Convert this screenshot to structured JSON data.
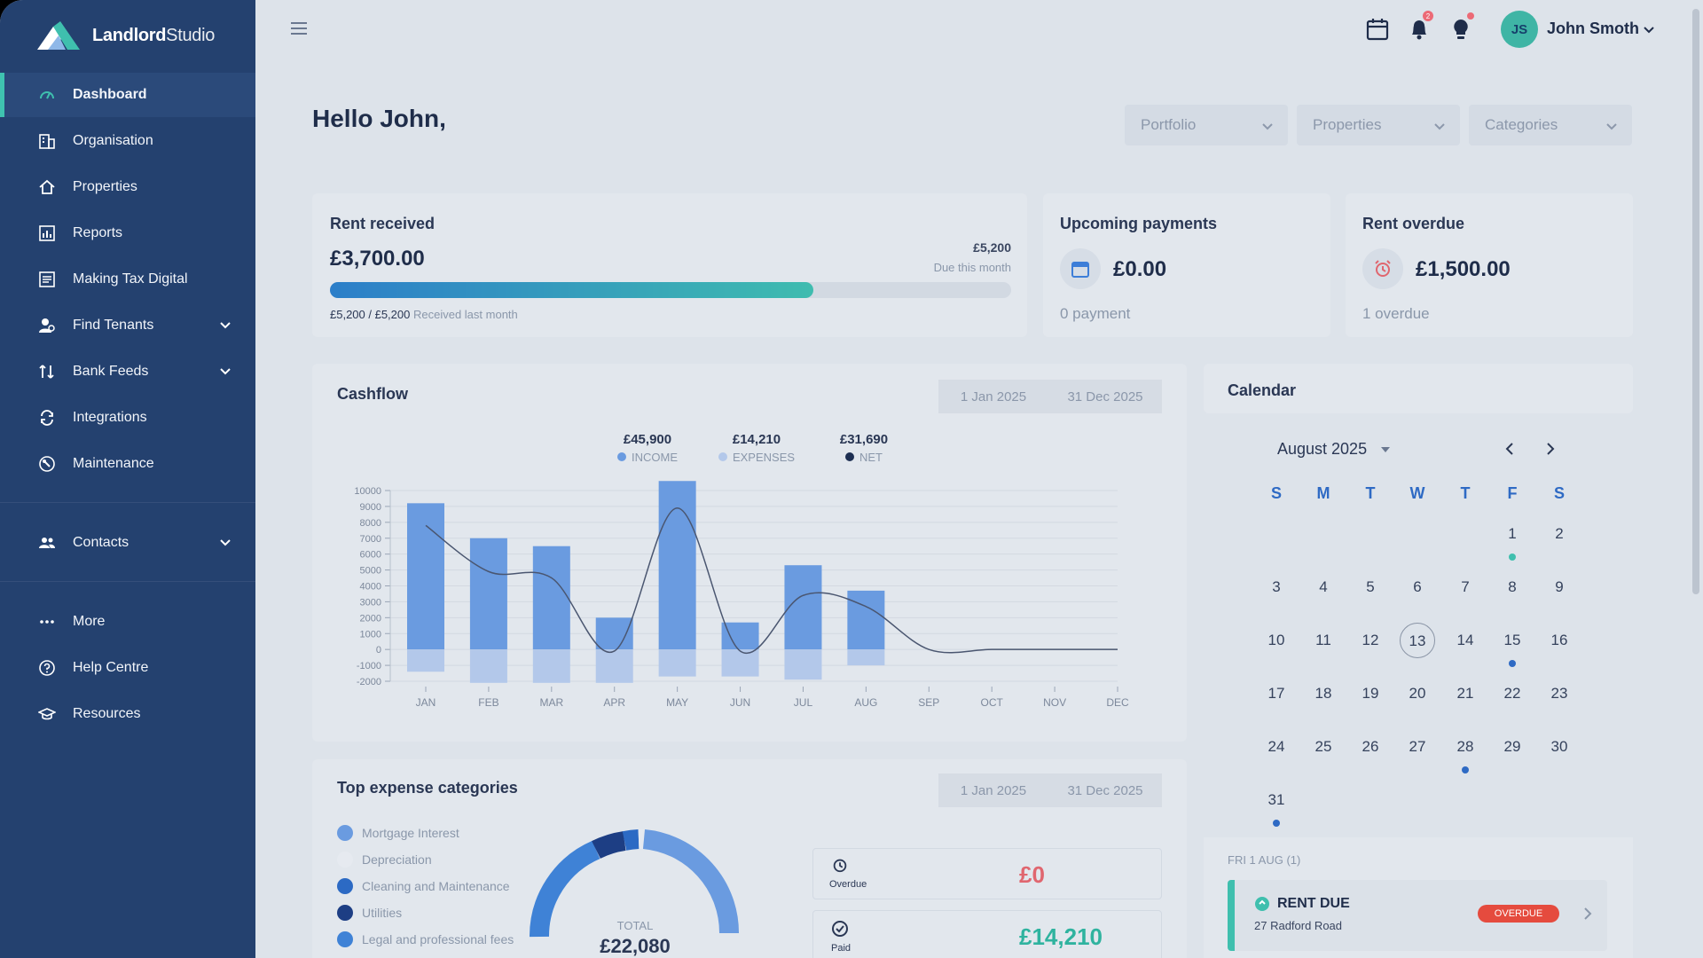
{
  "app": {
    "brand_bold": "Landlord",
    "brand_light": "Studio"
  },
  "sidebar": {
    "items": [
      {
        "label": "Dashboard",
        "icon": "dashboard-icon",
        "active": true
      },
      {
        "label": "Organisation",
        "icon": "building-icon"
      },
      {
        "label": "Properties",
        "icon": "home-icon"
      },
      {
        "label": "Reports",
        "icon": "chart-icon"
      },
      {
        "label": "Making Tax Digital",
        "icon": "document-icon"
      },
      {
        "label": "Find Tenants",
        "icon": "user-search-icon",
        "expandable": true
      },
      {
        "label": "Bank Feeds",
        "icon": "bank-icon",
        "expandable": true
      },
      {
        "label": "Integrations",
        "icon": "sync-icon"
      },
      {
        "label": "Maintenance",
        "icon": "wrench-icon"
      },
      {
        "label": "Contacts",
        "icon": "contacts-icon",
        "expandable": true
      },
      {
        "label": "More",
        "icon": "more-icon"
      },
      {
        "label": "Help Centre",
        "icon": "help-icon"
      },
      {
        "label": "Resources",
        "icon": "graduation-icon"
      }
    ]
  },
  "header": {
    "user_initials": "JS",
    "user_name": "John Smoth",
    "notification_count": "2"
  },
  "greeting": "Hello John,",
  "filters": [
    "Portfolio",
    "Properties",
    "Categories"
  ],
  "rent_received": {
    "title": "Rent received",
    "amount": "£3,700.00",
    "target": "£5,200",
    "target_caption": "Due this month",
    "progress": 0.71,
    "last_month_value": "£5,200 / £5,200",
    "last_month_caption": "Received last month"
  },
  "upcoming_payments": {
    "title": "Upcoming payments",
    "amount": "£0.00",
    "caption": "0 payment"
  },
  "rent_overdue": {
    "title": "Rent overdue",
    "amount": "£1,500.00",
    "caption": "1 overdue"
  },
  "cashflow": {
    "title": "Cashflow",
    "date_from": "1 Jan 2025",
    "date_to": "31 Dec 2025",
    "totals": [
      {
        "value": "£45,900",
        "label": "INCOME",
        "color": "#6a9be0"
      },
      {
        "value": "£14,210",
        "label": "EXPENSES",
        "color": "#b3c8ea"
      },
      {
        "value": "£31,690",
        "label": "NET",
        "color": "#1d2f52"
      }
    ]
  },
  "chart_data": {
    "type": "bar",
    "categories": [
      "JAN",
      "FEB",
      "MAR",
      "APR",
      "MAY",
      "JUN",
      "JUL",
      "AUG",
      "SEP",
      "OCT",
      "NOV",
      "DEC"
    ],
    "series": [
      {
        "name": "INCOME",
        "values": [
          9200,
          7000,
          6500,
          2000,
          10600,
          1700,
          5300,
          3700,
          0,
          0,
          0,
          0
        ]
      },
      {
        "name": "EXPENSES",
        "values": [
          -1400,
          -2100,
          -2100,
          -2100,
          -1700,
          -1700,
          -1900,
          -1000,
          0,
          0,
          0,
          0
        ]
      },
      {
        "name": "NET",
        "values": [
          7800,
          4900,
          4500,
          -100,
          8900,
          -100,
          3400,
          2700,
          0,
          0,
          0,
          0
        ]
      }
    ],
    "y_ticks": [
      "10000",
      "9000",
      "8000",
      "7000",
      "6000",
      "5000",
      "4000",
      "3000",
      "2000",
      "1000",
      "0",
      "-1000",
      "-2000"
    ],
    "ylim": [
      -2000,
      10000
    ]
  },
  "expenses": {
    "title": "Top expense categories",
    "date_from": "1 Jan 2025",
    "date_to": "31 Dec 2025",
    "categories": [
      {
        "label": "Mortgage Interest",
        "color": "#6a9be0"
      },
      {
        "label": "Depreciation",
        "color": "#e6eaf0"
      },
      {
        "label": "Cleaning and Maintenance",
        "color": "#2c6ac4"
      },
      {
        "label": "Utilities",
        "color": "#1d3e84"
      },
      {
        "label": "Legal and professional fees",
        "color": "#3f82d6"
      }
    ],
    "total_label": "TOTAL",
    "total_value": "£22,080",
    "overdue_label": "Overdue",
    "overdue_value": "£0",
    "paid_label": "Paid",
    "paid_value": "£14,210"
  },
  "calendar": {
    "title": "Calendar",
    "month": "August 2025",
    "dow": [
      "S",
      "M",
      "T",
      "W",
      "T",
      "F",
      "S"
    ],
    "days": [
      "1",
      "2",
      "3",
      "4",
      "5",
      "6",
      "7",
      "8",
      "9",
      "10",
      "11",
      "12",
      "13",
      "14",
      "15",
      "16",
      "17",
      "18",
      "19",
      "20",
      "21",
      "22",
      "23",
      "24",
      "25",
      "26",
      "27",
      "28",
      "29",
      "30",
      "31"
    ],
    "first_weekday": 5,
    "today": "13",
    "dots": [
      {
        "day": "1",
        "color": "#3fbfae"
      },
      {
        "day": "15",
        "color": "#2e6ac4"
      },
      {
        "day": "28",
        "color": "#2e6ac4"
      },
      {
        "day": "31",
        "color": "#2e6ac4"
      }
    ],
    "event_date": "FRI 1 AUG (1)",
    "event_title": "RENT DUE",
    "event_address": "27 Radford Road",
    "event_status": "OVERDUE"
  }
}
